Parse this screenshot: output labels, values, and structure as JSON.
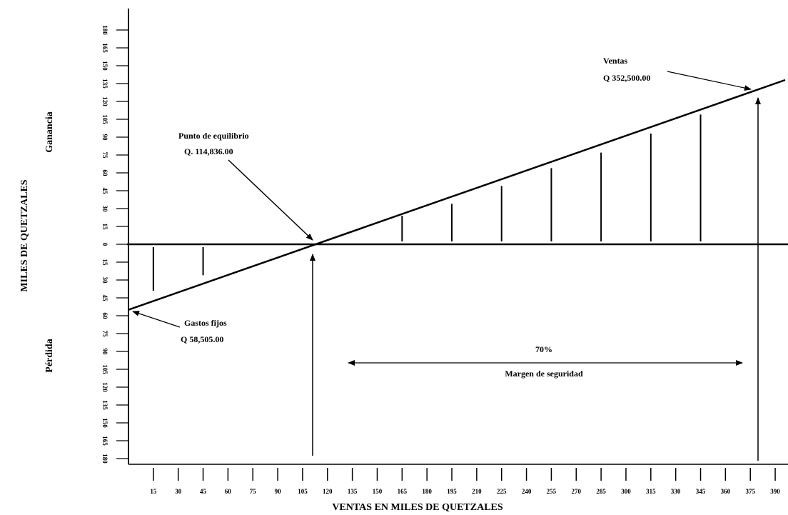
{
  "chart_data": {
    "type": "line",
    "x_label": "VENTAS EN MILES DE QUETZALES",
    "y_label": "MILES DE QUETZALES",
    "y_region_labels": [
      "Ganancia",
      "Pérdida"
    ],
    "xlim": [
      0,
      396
    ],
    "ylim": [
      -195,
      195
    ],
    "xticks": [
      15,
      30,
      45,
      60,
      75,
      90,
      105,
      120,
      135,
      150,
      165,
      180,
      195,
      210,
      225,
      240,
      255,
      270,
      285,
      300,
      315,
      330,
      345,
      360,
      375,
      390
    ],
    "yticks": [
      {
        "value": -180,
        "label": "180"
      },
      {
        "value": -165,
        "label": "165"
      },
      {
        "value": -150,
        "label": "150"
      },
      {
        "value": -135,
        "label": "135"
      },
      {
        "value": -120,
        "label": "120"
      },
      {
        "value": -105,
        "label": "105"
      },
      {
        "value": -90,
        "label": "90"
      },
      {
        "value": -75,
        "label": "75"
      },
      {
        "value": -60,
        "label": "60"
      },
      {
        "value": -45,
        "label": "45"
      },
      {
        "value": -30,
        "label": "30"
      },
      {
        "value": -15,
        "label": "15"
      },
      0,
      15,
      30,
      45,
      60,
      75,
      90,
      105,
      120,
      135,
      150,
      165,
      180
    ],
    "grid": false,
    "series": [
      {
        "x": [
          0,
          396
        ],
        "values": [
          -55,
          138
        ],
        "color": "#000000"
      }
    ],
    "bars": {
      "x": [
        15,
        45,
        165,
        195,
        225,
        255,
        285,
        315,
        345
      ],
      "values": [
        -39,
        -26,
        24,
        34,
        49,
        64,
        77,
        93,
        109
      ],
      "color": "#000000"
    },
    "annotations": [
      {
        "title": "Punto de equilibrio",
        "amount": "Q. 114,836.00"
      },
      {
        "title": "Ventas",
        "amount": "Q 352,500.00"
      },
      {
        "title": "Gastos fijos",
        "amount": "Q 58,505.00"
      },
      {
        "title": "Margen de seguridad",
        "amount": "70%"
      }
    ]
  }
}
